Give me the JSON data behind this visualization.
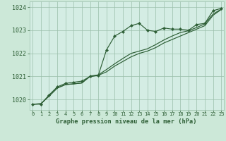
{
  "title": "Graphe pression niveau de la mer (hPa)",
  "background_color": "#cce8d8",
  "plot_bg_color": "#d4ede4",
  "grid_color": "#9abfaa",
  "line_color": "#2d5e35",
  "xlim_min": -0.4,
  "xlim_max": 23.3,
  "ylim_min": 1019.55,
  "ylim_max": 1024.25,
  "yticks": [
    1020,
    1021,
    1022,
    1023,
    1024
  ],
  "xticks": [
    0,
    1,
    2,
    3,
    4,
    5,
    6,
    7,
    8,
    9,
    10,
    11,
    12,
    13,
    14,
    15,
    16,
    17,
    18,
    19,
    20,
    21,
    22,
    23
  ],
  "line1_x": [
    0,
    1,
    2,
    3,
    4,
    5,
    6,
    7,
    8,
    9,
    10,
    11,
    12,
    13,
    14,
    15,
    16,
    17,
    18,
    19,
    20,
    21,
    22,
    23
  ],
  "line1_y": [
    1019.8,
    1019.8,
    1020.2,
    1020.55,
    1020.7,
    1020.75,
    1020.8,
    1021.0,
    1021.05,
    1022.15,
    1022.75,
    1022.95,
    1023.2,
    1023.3,
    1023.0,
    1022.95,
    1023.1,
    1023.05,
    1023.05,
    1023.0,
    1023.25,
    1023.3,
    1023.85,
    1023.95
  ],
  "line2_x": [
    0,
    1,
    2,
    3,
    4,
    5,
    6,
    7,
    8,
    9,
    10,
    11,
    12,
    13,
    14,
    15,
    16,
    17,
    18,
    19,
    20,
    21,
    22,
    23
  ],
  "line2_y": [
    1019.8,
    1019.82,
    1020.15,
    1020.5,
    1020.65,
    1020.68,
    1020.72,
    1021.0,
    1021.05,
    1021.2,
    1021.45,
    1021.65,
    1021.85,
    1022.0,
    1022.1,
    1022.25,
    1022.45,
    1022.6,
    1022.75,
    1022.9,
    1023.05,
    1023.2,
    1023.65,
    1023.9
  ],
  "line3_x": [
    0,
    1,
    2,
    3,
    4,
    5,
    6,
    7,
    8,
    9,
    10,
    11,
    12,
    13,
    14,
    15,
    16,
    17,
    18,
    19,
    20,
    21,
    22,
    23
  ],
  "line3_y": [
    1019.8,
    1019.82,
    1020.15,
    1020.5,
    1020.65,
    1020.68,
    1020.72,
    1021.02,
    1021.07,
    1021.3,
    1021.55,
    1021.78,
    1022.0,
    1022.1,
    1022.2,
    1022.38,
    1022.58,
    1022.75,
    1022.9,
    1022.98,
    1023.12,
    1023.28,
    1023.7,
    1023.92
  ]
}
